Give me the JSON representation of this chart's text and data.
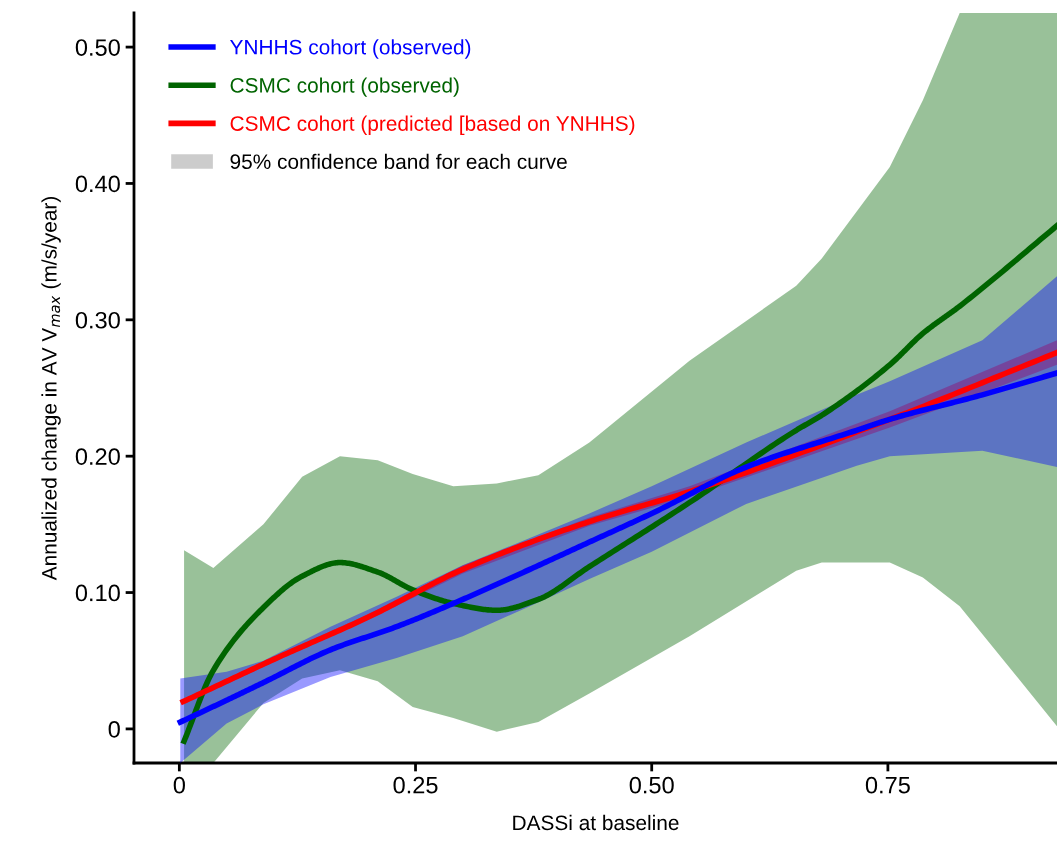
{
  "chart_data": {
    "type": "line",
    "xlabel": "DASSi at baseline",
    "ylabel": "Annualized change in AV V$_{max}$ (m/s/year)",
    "xlim": [
      -0.048,
      0.929
    ],
    "ylim": [
      -0.025,
      0.525
    ],
    "xticks": [
      {
        "value": 0,
        "label": "0"
      },
      {
        "value": 0.25,
        "label": "0.25"
      },
      {
        "value": 0.5,
        "label": "0.50"
      },
      {
        "value": 0.75,
        "label": "0.75"
      }
    ],
    "yticks": [
      {
        "value": 0,
        "label": "0"
      },
      {
        "value": 0.1,
        "label": "0.10"
      },
      {
        "value": 0.2,
        "label": "0.20"
      },
      {
        "value": 0.3,
        "label": "0.30"
      },
      {
        "value": 0.4,
        "label": "0.40"
      },
      {
        "value": 0.5,
        "label": "0.50"
      }
    ],
    "grid": false,
    "legend": "top left",
    "marker": "none",
    "line_style": "solid",
    "annotations": [
      "95% confidence band for each curve"
    ],
    "series": [
      {
        "name": "YNHHS cohort (observed)",
        "color": "#0000ff",
        "x": [
          0.001,
          0.05,
          0.089,
          0.16,
          0.23,
          0.3,
          0.371,
          0.434,
          0.5,
          0.6,
          0.717,
          0.752,
          0.85,
          0.929
        ],
        "values": [
          0.005,
          0.021,
          0.034,
          0.058,
          0.075,
          0.095,
          0.117,
          0.137,
          0.158,
          0.192,
          0.219,
          0.227,
          0.245,
          0.261
        ],
        "lower": [
          -0.025,
          0.004,
          0.018,
          0.038,
          0.052,
          0.068,
          0.09,
          0.11,
          0.13,
          0.165,
          0.193,
          0.2,
          0.204,
          0.192
        ],
        "upper": [
          0.037,
          0.042,
          0.05,
          0.075,
          0.097,
          0.12,
          0.14,
          0.158,
          0.178,
          0.21,
          0.245,
          0.255,
          0.285,
          0.332
        ]
      },
      {
        "name": "CSMC cohort (observed)",
        "color": "#006400",
        "x": [
          0.005,
          0.036,
          0.089,
          0.13,
          0.17,
          0.21,
          0.247,
          0.29,
          0.336,
          0.38,
          0.434,
          0.54,
          0.653,
          0.68,
          0.752,
          0.787,
          0.826,
          0.929
        ],
        "values": [
          -0.009,
          0.043,
          0.089,
          0.112,
          0.122,
          0.115,
          0.102,
          0.092,
          0.087,
          0.095,
          0.119,
          0.166,
          0.219,
          0.23,
          0.267,
          0.29,
          0.31,
          0.369
        ],
        "lower": [
          -0.025,
          -0.025,
          0.019,
          0.037,
          0.043,
          0.035,
          0.016,
          0.008,
          -0.002,
          0.005,
          0.026,
          0.068,
          0.116,
          0.122,
          0.122,
          0.111,
          0.09,
          0.002
        ],
        "upper": [
          0.131,
          0.118,
          0.15,
          0.185,
          0.2,
          0.197,
          0.187,
          0.178,
          0.18,
          0.186,
          0.21,
          0.27,
          0.325,
          0.345,
          0.412,
          0.461,
          0.525,
          0.525
        ]
      },
      {
        "name": "CSMC cohort (predicted [based on YNHHS)",
        "color": "#ff0000",
        "x": [
          0.004,
          0.1,
          0.2,
          0.3,
          0.434,
          0.54,
          0.752,
          0.929
        ],
        "values": [
          0.02,
          0.051,
          0.082,
          0.117,
          0.152,
          0.174,
          0.227,
          0.276
        ],
        "lower": [
          0.018,
          0.049,
          0.08,
          0.114,
          0.149,
          0.17,
          0.221,
          0.267
        ],
        "upper": [
          0.022,
          0.053,
          0.084,
          0.12,
          0.155,
          0.178,
          0.233,
          0.285
        ]
      }
    ]
  }
}
